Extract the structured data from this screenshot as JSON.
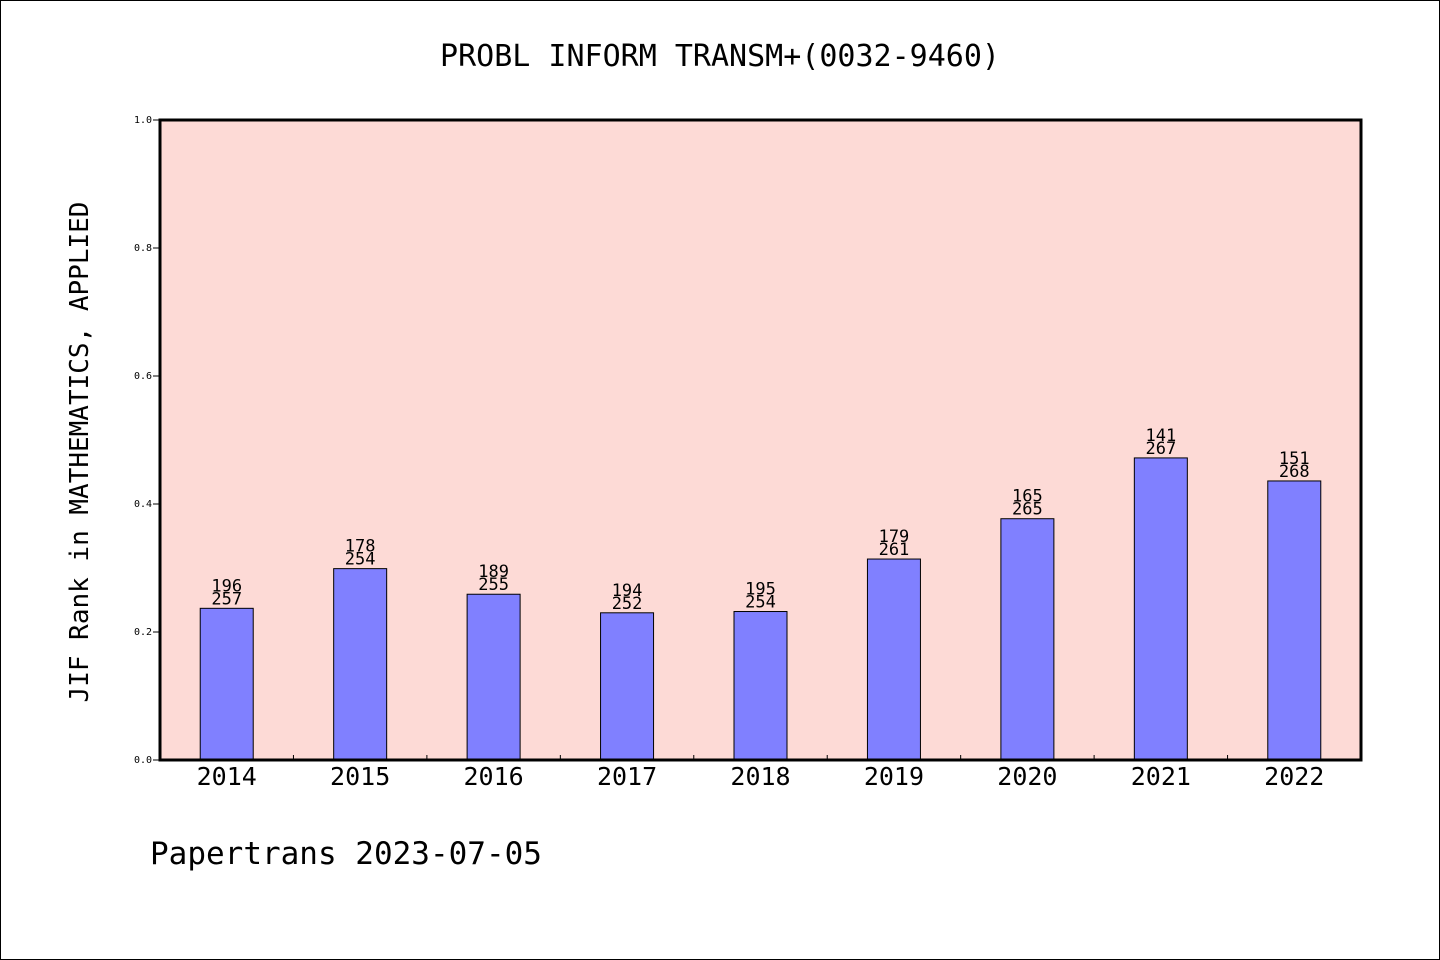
{
  "chart_data": {
    "type": "bar",
    "title": "PROBL INFORM TRANSM+(0032-9460)",
    "ylabel": "JIF Rank in MATHEMATICS, APPLIED",
    "xlabel": "",
    "ylim": [
      0,
      1.0
    ],
    "yticks": [
      "0.0",
      "0.2",
      "0.4",
      "0.6",
      "0.8",
      "1.0"
    ],
    "categories": [
      "2014",
      "2015",
      "2016",
      "2017",
      "2018",
      "2019",
      "2020",
      "2021",
      "2022"
    ],
    "values": [
      0.237,
      0.299,
      0.259,
      0.23,
      0.232,
      0.314,
      0.377,
      0.472,
      0.436
    ],
    "ranks": [
      "196",
      "178",
      "189",
      "194",
      "195",
      "179",
      "165",
      "141",
      "151"
    ],
    "totals": [
      "257",
      "254",
      "255",
      "252",
      "254",
      "261",
      "265",
      "267",
      "268"
    ],
    "grid": false,
    "plot_background": "#fddad6",
    "bar_color": "#8080ff"
  },
  "footer": {
    "text": "Papertrans 2023-07-05"
  }
}
